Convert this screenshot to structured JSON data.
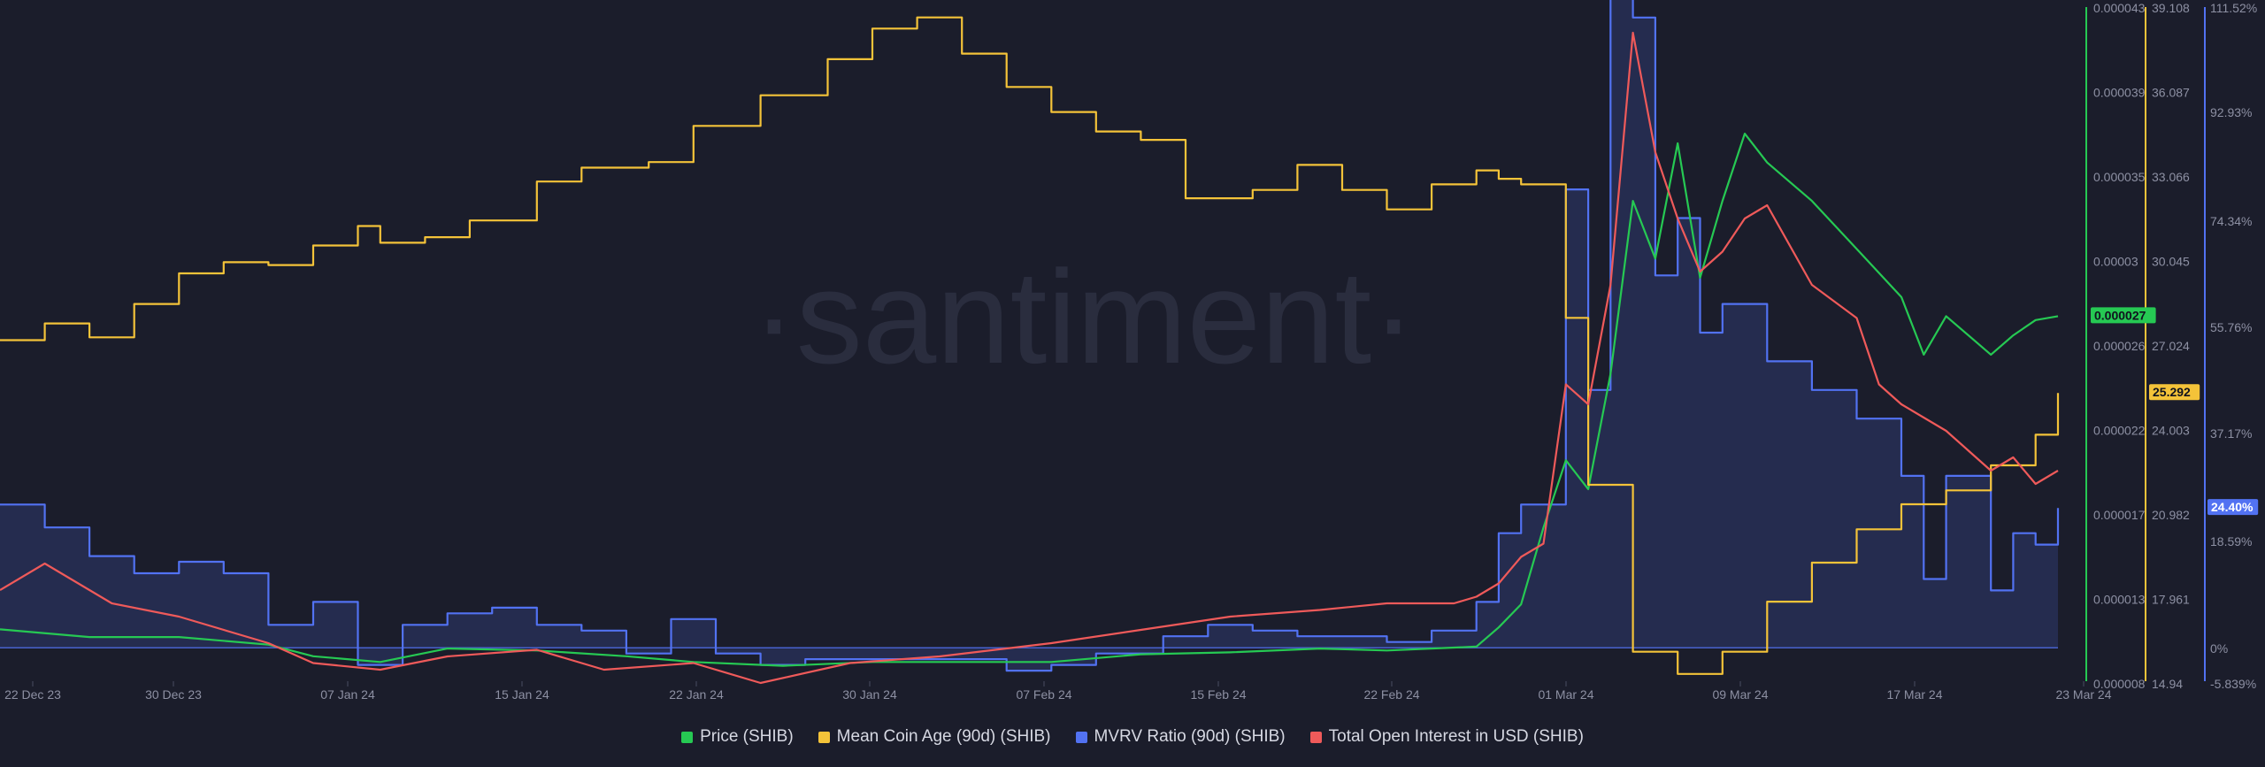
{
  "watermark": "·santiment·",
  "colors": {
    "background": "#1b1d2b",
    "price": "#26c953",
    "coin_age": "#f4c339",
    "mvrv": "#5272f2",
    "open_interest": "#ef5a5a"
  },
  "legend": [
    {
      "label": "Price (SHIB)",
      "color": "#26c953"
    },
    {
      "label": "Mean Coin Age (90d) (SHIB)",
      "color": "#f4c339"
    },
    {
      "label": "MVRV Ratio (90d) (SHIB)",
      "color": "#5272f2"
    },
    {
      "label": "Total Open Interest in USD (SHIB)",
      "color": "#ef5a5a"
    }
  ],
  "chart_data": {
    "type": "line",
    "x_tick_labels": [
      "22 Dec 23",
      "30 Dec 23",
      "07 Jan 24",
      "15 Jan 24",
      "22 Jan 24",
      "30 Jan 24",
      "07 Feb 24",
      "15 Feb 24",
      "22 Feb 24",
      "01 Mar 24",
      "09 Mar 24",
      "17 Mar 24",
      "23 Mar 24"
    ],
    "x_range": [
      "2023-12-22",
      "2024-03-23"
    ],
    "axes": {
      "price": {
        "ticks": [
          "0.000043",
          "0.000039",
          "0.000035",
          "0.00003",
          "0.000026",
          "0.000022",
          "0.000017",
          "0.000013",
          "0.000008"
        ],
        "range": [
          8e-06,
          4.3e-05
        ],
        "current_label": "0.000027"
      },
      "coin_age": {
        "ticks": [
          "39.108",
          "36.087",
          "33.066",
          "30.045",
          "27.024",
          "24.003",
          "20.982",
          "17.961",
          "14.94"
        ],
        "range": [
          14.94,
          39.108
        ],
        "current_label": "25.292"
      },
      "mvrv": {
        "ticks": [
          "111.52%",
          "92.93%",
          "74.34%",
          "55.76%",
          "37.17%",
          "18.59%",
          "0%",
          "-5.839%"
        ],
        "range": [
          -5.839,
          111.52
        ],
        "current_label": "24.40%"
      }
    },
    "series": [
      {
        "name": "Mean Coin Age (90d) (SHIB)",
        "color": "#f4c339",
        "step": true,
        "x": [
          "2023-12-22",
          "2023-12-24",
          "2023-12-26",
          "2023-12-28",
          "2023-12-30",
          "2024-01-01",
          "2024-01-03",
          "2024-01-05",
          "2024-01-07",
          "2024-01-08",
          "2024-01-10",
          "2024-01-12",
          "2024-01-15",
          "2024-01-17",
          "2024-01-20",
          "2024-01-22",
          "2024-01-25",
          "2024-01-28",
          "2024-01-30",
          "2024-02-01",
          "2024-02-03",
          "2024-02-05",
          "2024-02-07",
          "2024-02-09",
          "2024-02-11",
          "2024-02-13",
          "2024-02-16",
          "2024-02-18",
          "2024-02-20",
          "2024-02-22",
          "2024-02-24",
          "2024-02-26",
          "2024-02-27",
          "2024-02-28",
          "2024-03-01",
          "2024-03-02",
          "2024-03-04",
          "2024-03-06",
          "2024-03-08",
          "2024-03-10",
          "2024-03-12",
          "2024-03-14",
          "2024-03-16",
          "2024-03-18",
          "2024-03-20",
          "2024-03-22",
          "2024-03-23"
        ],
        "y": [
          27.2,
          27.8,
          27.3,
          28.5,
          29.6,
          30.0,
          29.9,
          30.6,
          31.3,
          30.7,
          30.9,
          31.5,
          32.9,
          33.4,
          33.6,
          34.9,
          36.0,
          37.3,
          38.4,
          38.8,
          37.5,
          36.3,
          35.4,
          34.7,
          34.4,
          32.3,
          32.6,
          33.5,
          32.6,
          31.9,
          32.8,
          33.3,
          33.0,
          32.8,
          28.0,
          22.0,
          16.0,
          15.2,
          16.0,
          17.8,
          19.2,
          20.4,
          21.3,
          21.8,
          22.7,
          23.8,
          25.3
        ]
      },
      {
        "name": "Price (SHIB)",
        "color": "#26c953",
        "x": [
          "2023-12-22",
          "2023-12-26",
          "2023-12-30",
          "2024-01-03",
          "2024-01-05",
          "2024-01-08",
          "2024-01-11",
          "2024-01-15",
          "2024-01-19",
          "2024-01-22",
          "2024-01-26",
          "2024-01-30",
          "2024-02-03",
          "2024-02-07",
          "2024-02-11",
          "2024-02-15",
          "2024-02-19",
          "2024-02-22",
          "2024-02-26",
          "2024-02-27",
          "2024-02-28",
          "2024-02-29",
          "2024-03-01",
          "2024-03-02",
          "2024-03-03",
          "2024-03-04",
          "2024-03-05",
          "2024-03-06",
          "2024-03-07",
          "2024-03-08",
          "2024-03-09",
          "2024-03-10",
          "2024-03-12",
          "2024-03-14",
          "2024-03-16",
          "2024-03-17",
          "2024-03-18",
          "2024-03-20",
          "2024-03-21",
          "2024-03-22",
          "2024-03-23"
        ],
        "y": [
          1.07e-05,
          1.03e-05,
          1.03e-05,
          9.9e-06,
          9.3e-06,
          9e-06,
          9.7e-06,
          9.6e-06,
          9.3e-06,
          9e-06,
          8.8e-06,
          9e-06,
          9e-06,
          9e-06,
          9.4e-06,
          9.5e-06,
          9.7e-06,
          9.6e-06,
          9.8e-06,
          1.08e-05,
          1.2e-05,
          1.6e-05,
          1.95e-05,
          1.8e-05,
          2.4e-05,
          3.3e-05,
          3e-05,
          3.6e-05,
          2.9e-05,
          3.3e-05,
          3.65e-05,
          3.5e-05,
          3.3e-05,
          3.05e-05,
          2.8e-05,
          2.5e-05,
          2.7e-05,
          2.5e-05,
          2.6e-05,
          2.68e-05,
          2.7e-05
        ]
      },
      {
        "name": "MVRV Ratio (90d) (SHIB)",
        "color": "#5272f2",
        "step": true,
        "area": true,
        "x": [
          "2023-12-22",
          "2023-12-24",
          "2023-12-26",
          "2023-12-28",
          "2023-12-30",
          "2024-01-01",
          "2024-01-03",
          "2024-01-05",
          "2024-01-07",
          "2024-01-09",
          "2024-01-11",
          "2024-01-13",
          "2024-01-15",
          "2024-01-17",
          "2024-01-19",
          "2024-01-21",
          "2024-01-23",
          "2024-01-25",
          "2024-01-27",
          "2024-01-30",
          "2024-02-02",
          "2024-02-05",
          "2024-02-07",
          "2024-02-09",
          "2024-02-12",
          "2024-02-14",
          "2024-02-16",
          "2024-02-18",
          "2024-02-20",
          "2024-02-22",
          "2024-02-24",
          "2024-02-26",
          "2024-02-27",
          "2024-02-28",
          "2024-02-29",
          "2024-03-01",
          "2024-03-02",
          "2024-03-03",
          "2024-03-04",
          "2024-03-05",
          "2024-03-06",
          "2024-03-07",
          "2024-03-08",
          "2024-03-10",
          "2024-03-12",
          "2024-03-14",
          "2024-03-16",
          "2024-03-17",
          "2024-03-18",
          "2024-03-20",
          "2024-03-21",
          "2024-03-22",
          "2024-03-23"
        ],
        "y": [
          25,
          21,
          16,
          13,
          15,
          13,
          4,
          8,
          -3,
          4,
          6,
          7,
          4,
          3,
          -1,
          5,
          -1,
          -3,
          -2,
          -2,
          -2,
          -4,
          -3,
          -1,
          2,
          4,
          3,
          2,
          2,
          1,
          3,
          8,
          20,
          25,
          25,
          80,
          45,
          115,
          110,
          65,
          75,
          55,
          60,
          50,
          45,
          40,
          30,
          12,
          30,
          10,
          20,
          18,
          24.4
        ]
      },
      {
        "name": "Total Open Interest in USD (SHIB)",
        "color": "#ef5a5a",
        "relative_scale": [
          0,
          1
        ],
        "x": [
          "2023-12-22",
          "2023-12-24",
          "2023-12-27",
          "2023-12-30",
          "2024-01-03",
          "2024-01-05",
          "2024-01-08",
          "2024-01-11",
          "2024-01-15",
          "2024-01-18",
          "2024-01-22",
          "2024-01-25",
          "2024-01-29",
          "2024-02-02",
          "2024-02-07",
          "2024-02-11",
          "2024-02-15",
          "2024-02-19",
          "2024-02-22",
          "2024-02-25",
          "2024-02-26",
          "2024-02-27",
          "2024-02-28",
          "2024-02-29",
          "2024-03-01",
          "2024-03-02",
          "2024-03-03",
          "2024-03-04",
          "2024-03-05",
          "2024-03-06",
          "2024-03-07",
          "2024-03-08",
          "2024-03-09",
          "2024-03-10",
          "2024-03-12",
          "2024-03-14",
          "2024-03-15",
          "2024-03-16",
          "2024-03-17",
          "2024-03-18",
          "2024-03-19",
          "2024-03-20",
          "2024-03-21",
          "2024-03-22",
          "2024-03-23"
        ],
        "y": [
          0.14,
          0.18,
          0.12,
          0.1,
          0.06,
          0.03,
          0.02,
          0.04,
          0.05,
          0.02,
          0.03,
          0.0,
          0.03,
          0.04,
          0.06,
          0.08,
          0.1,
          0.11,
          0.12,
          0.12,
          0.13,
          0.15,
          0.19,
          0.21,
          0.45,
          0.42,
          0.6,
          0.98,
          0.8,
          0.7,
          0.62,
          0.65,
          0.7,
          0.72,
          0.6,
          0.55,
          0.45,
          0.42,
          0.4,
          0.38,
          0.35,
          0.32,
          0.34,
          0.3,
          0.32
        ]
      }
    ],
    "grid": false,
    "legend_position": "bottom"
  }
}
